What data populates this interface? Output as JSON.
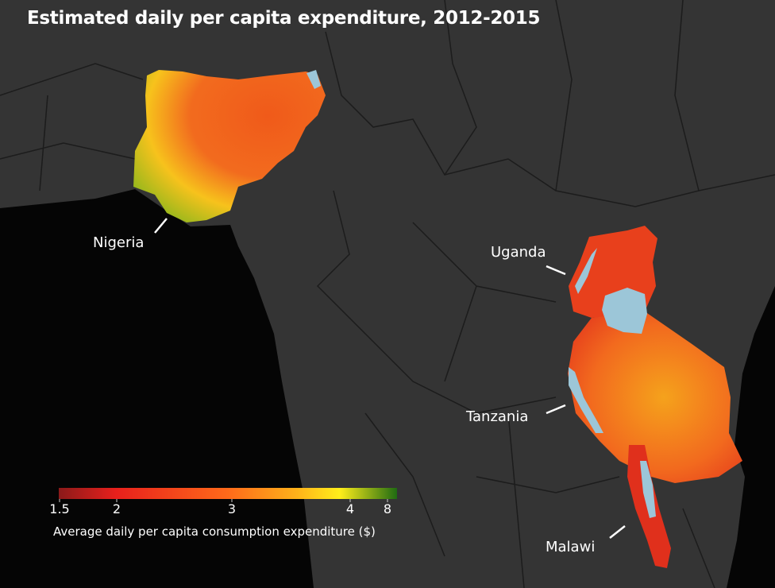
{
  "title": "Estimated daily per capita expenditure, 2012-2015",
  "labels": {
    "nigeria": "Nigeria",
    "uganda": "Uganda",
    "tanzania": "Tanzania",
    "malawi": "Malawi"
  },
  "legend": {
    "caption": "Average daily per capita consumption expenditure ($)",
    "ticks": [
      "1.5",
      "2",
      "3",
      "4",
      "8"
    ],
    "colors": [
      "#8b1a1a",
      "#e8201c",
      "#ff8c1a",
      "#ffee1a",
      "#1f6b12"
    ]
  },
  "colors": {
    "land": "#343434",
    "ocean": "#050505",
    "lakes": "#9cc6d8",
    "borders": "#1c1c1c"
  }
}
